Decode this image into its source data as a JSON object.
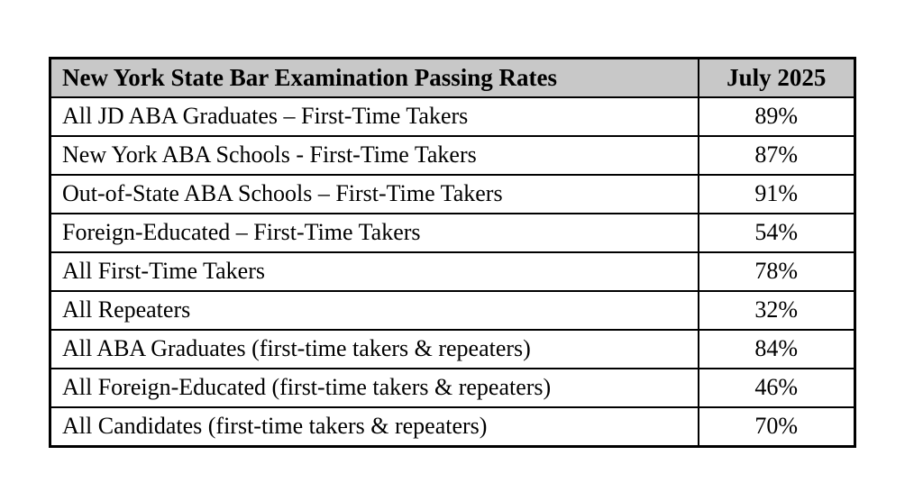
{
  "table": {
    "header": {
      "title": "New York State Bar Examination Passing Rates",
      "period": "July 2025"
    },
    "rows": [
      {
        "label": "All JD ABA Graduates – First-Time Takers",
        "value": "89%"
      },
      {
        "label": "New York ABA Schools - First-Time Takers",
        "value": "87%"
      },
      {
        "label": "Out-of-State ABA Schools – First-Time Takers",
        "value": "91%"
      },
      {
        "label": "Foreign-Educated – First-Time Takers",
        "value": "54%"
      },
      {
        "label": "All First-Time Takers",
        "value": "78%"
      },
      {
        "label": "All Repeaters",
        "value": "32%"
      },
      {
        "label": "All ABA Graduates (first-time takers & repeaters)",
        "value": "84%"
      },
      {
        "label": "All Foreign-Educated (first-time takers & repeaters)",
        "value": "46%"
      },
      {
        "label": "All Candidates (first-time takers & repeaters)",
        "value": "70%"
      }
    ],
    "colors": {
      "header_background": "#c8c8c8",
      "border": "#000000",
      "text": "#000000",
      "page_background": "#ffffff"
    }
  }
}
